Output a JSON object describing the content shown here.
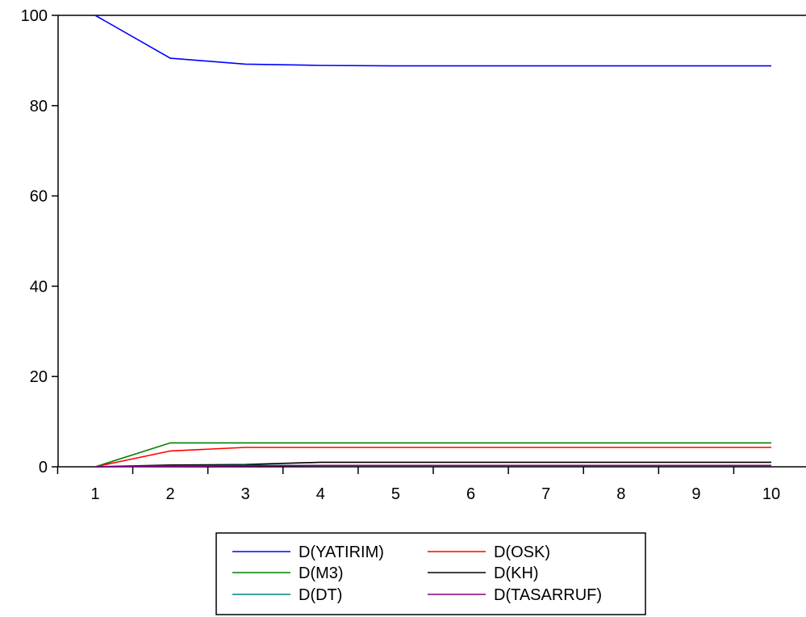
{
  "chart_data": {
    "type": "line",
    "title": "",
    "xlabel": "",
    "ylabel": "",
    "x": [
      1,
      2,
      3,
      4,
      5,
      6,
      7,
      8,
      9,
      10
    ],
    "x_tick_labels": [
      "1",
      "2",
      "3",
      "4",
      "5",
      "6",
      "7",
      "8",
      "9",
      "10"
    ],
    "ylim": [
      0,
      100
    ],
    "y_ticks": [
      0,
      20,
      40,
      60,
      80,
      100
    ],
    "y_tick_labels": [
      "0",
      "20",
      "40",
      "60",
      "80",
      "100"
    ],
    "grid": false,
    "legend_position": "bottom",
    "series": [
      {
        "name": "D(YATIRIM)",
        "color": "#0000ff",
        "values": [
          100,
          90.5,
          89.2,
          88.9,
          88.8,
          88.8,
          88.8,
          88.8,
          88.8,
          88.8
        ]
      },
      {
        "name": "D(OSK)",
        "color": "#ff0000",
        "values": [
          0,
          3.5,
          4.3,
          4.3,
          4.3,
          4.3,
          4.3,
          4.3,
          4.3,
          4.3
        ]
      },
      {
        "name": "D(M3)",
        "color": "#008000",
        "values": [
          0,
          5.3,
          5.3,
          5.3,
          5.3,
          5.3,
          5.3,
          5.3,
          5.3,
          5.3
        ]
      },
      {
        "name": "D(KH)",
        "color": "#000000",
        "values": [
          0,
          0.4,
          0.5,
          1.0,
          1.0,
          1.0,
          1.0,
          1.0,
          1.0,
          1.0
        ]
      },
      {
        "name": "D(DT)",
        "color": "#008080",
        "values": [
          0,
          0.2,
          0.3,
          0.3,
          0.3,
          0.3,
          0.3,
          0.3,
          0.3,
          0.3
        ]
      },
      {
        "name": "D(TASARRUF)",
        "color": "#800080",
        "values": [
          0,
          0.1,
          0.2,
          0.3,
          0.3,
          0.3,
          0.3,
          0.3,
          0.3,
          0.3
        ]
      }
    ]
  }
}
